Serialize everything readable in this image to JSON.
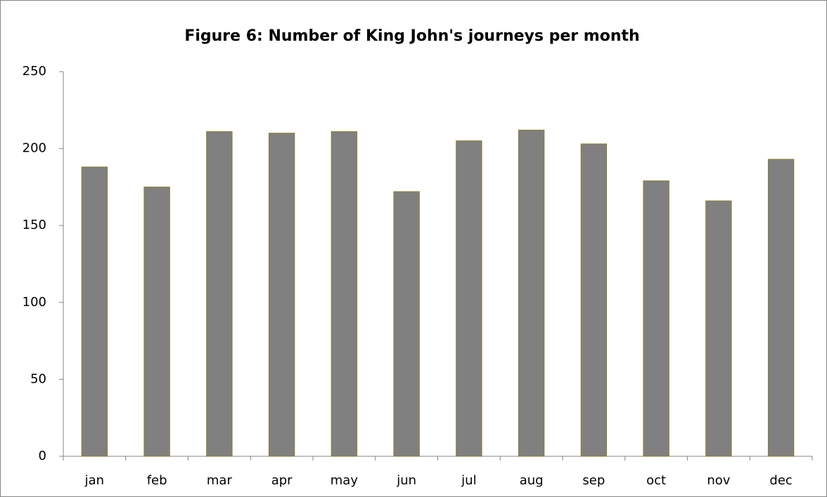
{
  "chart_data": {
    "type": "bar",
    "title": "Figure 6: Number of King John's journeys per month",
    "categories": [
      "jan",
      "feb",
      "mar",
      "apr",
      "may",
      "jun",
      "jul",
      "aug",
      "sep",
      "oct",
      "nov",
      "dec"
    ],
    "values": [
      188,
      175,
      211,
      210,
      211,
      172,
      205,
      212,
      203,
      179,
      166,
      193
    ],
    "color": "#808080",
    "edge_color": "#8b7d2a",
    "ylim": [
      0,
      250
    ],
    "yticks": [
      0,
      50,
      100,
      150,
      200,
      250
    ],
    "grid": false
  }
}
